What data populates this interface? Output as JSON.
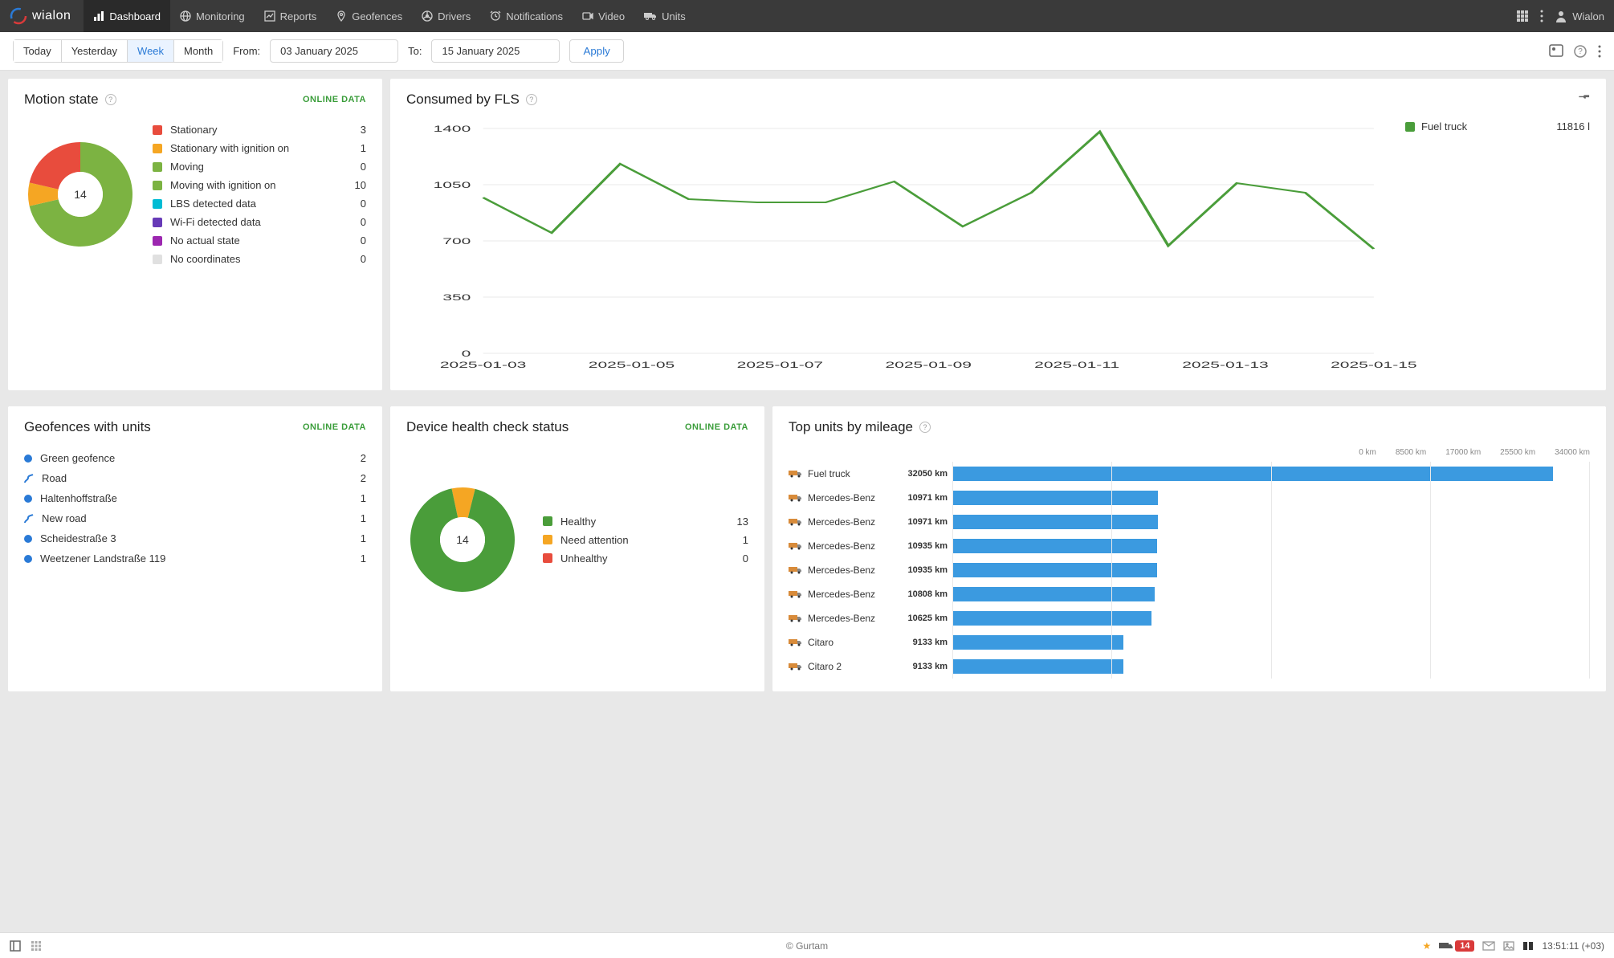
{
  "brand": "wialon",
  "nav": {
    "items": [
      {
        "icon": "chart",
        "label": "Dashboard",
        "active": true
      },
      {
        "icon": "globe",
        "label": "Monitoring"
      },
      {
        "icon": "chart2",
        "label": "Reports"
      },
      {
        "icon": "geo",
        "label": "Geofences"
      },
      {
        "icon": "wheel",
        "label": "Drivers"
      },
      {
        "icon": "bell",
        "label": "Notifications"
      },
      {
        "icon": "video",
        "label": "Video"
      },
      {
        "icon": "truck",
        "label": "Units"
      }
    ]
  },
  "user": "Wialon",
  "filter": {
    "ranges": [
      "Today",
      "Yesterday",
      "Week",
      "Month"
    ],
    "active_range": "Week",
    "from_label": "From:",
    "from_value": "03 January 2025",
    "to_label": "To:",
    "to_value": "15 January 2025",
    "apply": "Apply"
  },
  "motion": {
    "title": "Motion state",
    "online": "ONLINE DATA",
    "total": 14,
    "legend": [
      {
        "color": "#e84c3d",
        "label": "Stationary",
        "value": 3
      },
      {
        "color": "#f5a623",
        "label": "Stationary with ignition on",
        "value": 1
      },
      {
        "color": "#7cb342",
        "label": "Moving",
        "value": 0
      },
      {
        "color": "#7cb342",
        "label": "Moving with ignition on",
        "value": 10
      },
      {
        "color": "#00bcd4",
        "label": "LBS detected data",
        "value": 0
      },
      {
        "color": "#673ab7",
        "label": "Wi-Fi detected data",
        "value": 0
      },
      {
        "color": "#9c27b0",
        "label": "No actual state",
        "value": 0
      },
      {
        "color": "#e0e0e0",
        "label": "No coordinates",
        "value": 0
      }
    ],
    "donut_segments": [
      {
        "color": "#7cb342",
        "start": 0,
        "end": 257
      },
      {
        "color": "#f5a623",
        "start": 257,
        "end": 283
      },
      {
        "color": "#e84c3d",
        "start": 283,
        "end": 360
      }
    ]
  },
  "fls": {
    "title": "Consumed by FLS",
    "legend_label": "Fuel truck",
    "legend_value": "11816 l",
    "y_ticks": [
      0,
      350,
      700,
      1050,
      1400
    ],
    "x_labels": [
      "2025-01-03",
      "2025-01-05",
      "2025-01-07",
      "2025-01-09",
      "2025-01-11",
      "2025-01-13",
      "2025-01-15"
    ],
    "series_color": "#4a9d3a",
    "points": [
      970,
      750,
      1180,
      960,
      940,
      940,
      1070,
      790,
      1000,
      1380,
      670,
      1060,
      1000,
      650
    ]
  },
  "geofences": {
    "title": "Geofences with units",
    "online": "ONLINE DATA",
    "rows": [
      {
        "icon": "circle",
        "color": "#2a7ad6",
        "name": "Green geofence",
        "value": 2
      },
      {
        "icon": "route",
        "color": "#2a7ad6",
        "name": "Road",
        "value": 2
      },
      {
        "icon": "circle",
        "color": "#2a7ad6",
        "name": "Haltenhoffstraße",
        "value": 1
      },
      {
        "icon": "route",
        "color": "#2a7ad6",
        "name": "New road",
        "value": 1
      },
      {
        "icon": "circle",
        "color": "#2a7ad6",
        "name": "Scheidestraße 3",
        "value": 1
      },
      {
        "icon": "circle",
        "color": "#2a7ad6",
        "name": "Weetzener Landstraße 119",
        "value": 1
      }
    ]
  },
  "health": {
    "title": "Device health check status",
    "online": "ONLINE DATA",
    "total": 14,
    "legend": [
      {
        "color": "#4a9d3a",
        "label": "Healthy",
        "value": 13
      },
      {
        "color": "#f5a623",
        "label": "Need attention",
        "value": 1
      },
      {
        "color": "#e84c3d",
        "label": "Unhealthy",
        "value": 0
      }
    ],
    "donut_segments": [
      {
        "color": "#f5a623",
        "start": -12,
        "end": 14
      },
      {
        "color": "#4a9d3a",
        "start": 14,
        "end": 348
      }
    ]
  },
  "topunits": {
    "title": "Top units by mileage",
    "axis_labels": [
      "0 km",
      "8500 km",
      "17000 km",
      "25500 km",
      "34000 km"
    ],
    "max": 34000,
    "rows": [
      {
        "name": "Fuel truck",
        "value": 32050,
        "display": "32050 km"
      },
      {
        "name": "Mercedes-Benz",
        "value": 10971,
        "display": "10971 km"
      },
      {
        "name": "Mercedes-Benz",
        "value": 10971,
        "display": "10971 km"
      },
      {
        "name": "Mercedes-Benz",
        "value": 10935,
        "display": "10935 km"
      },
      {
        "name": "Mercedes-Benz",
        "value": 10935,
        "display": "10935 km"
      },
      {
        "name": "Mercedes-Benz",
        "value": 10808,
        "display": "10808 km"
      },
      {
        "name": "Mercedes-Benz",
        "value": 10625,
        "display": "10625 km"
      },
      {
        "name": "Citaro",
        "value": 9133,
        "display": "9133 km"
      },
      {
        "name": "Citaro 2",
        "value": 9133,
        "display": "9133 km"
      }
    ]
  },
  "footer": {
    "copyright": "© Gurtam",
    "badge": "14",
    "time": "13:51:11 (+03)"
  }
}
